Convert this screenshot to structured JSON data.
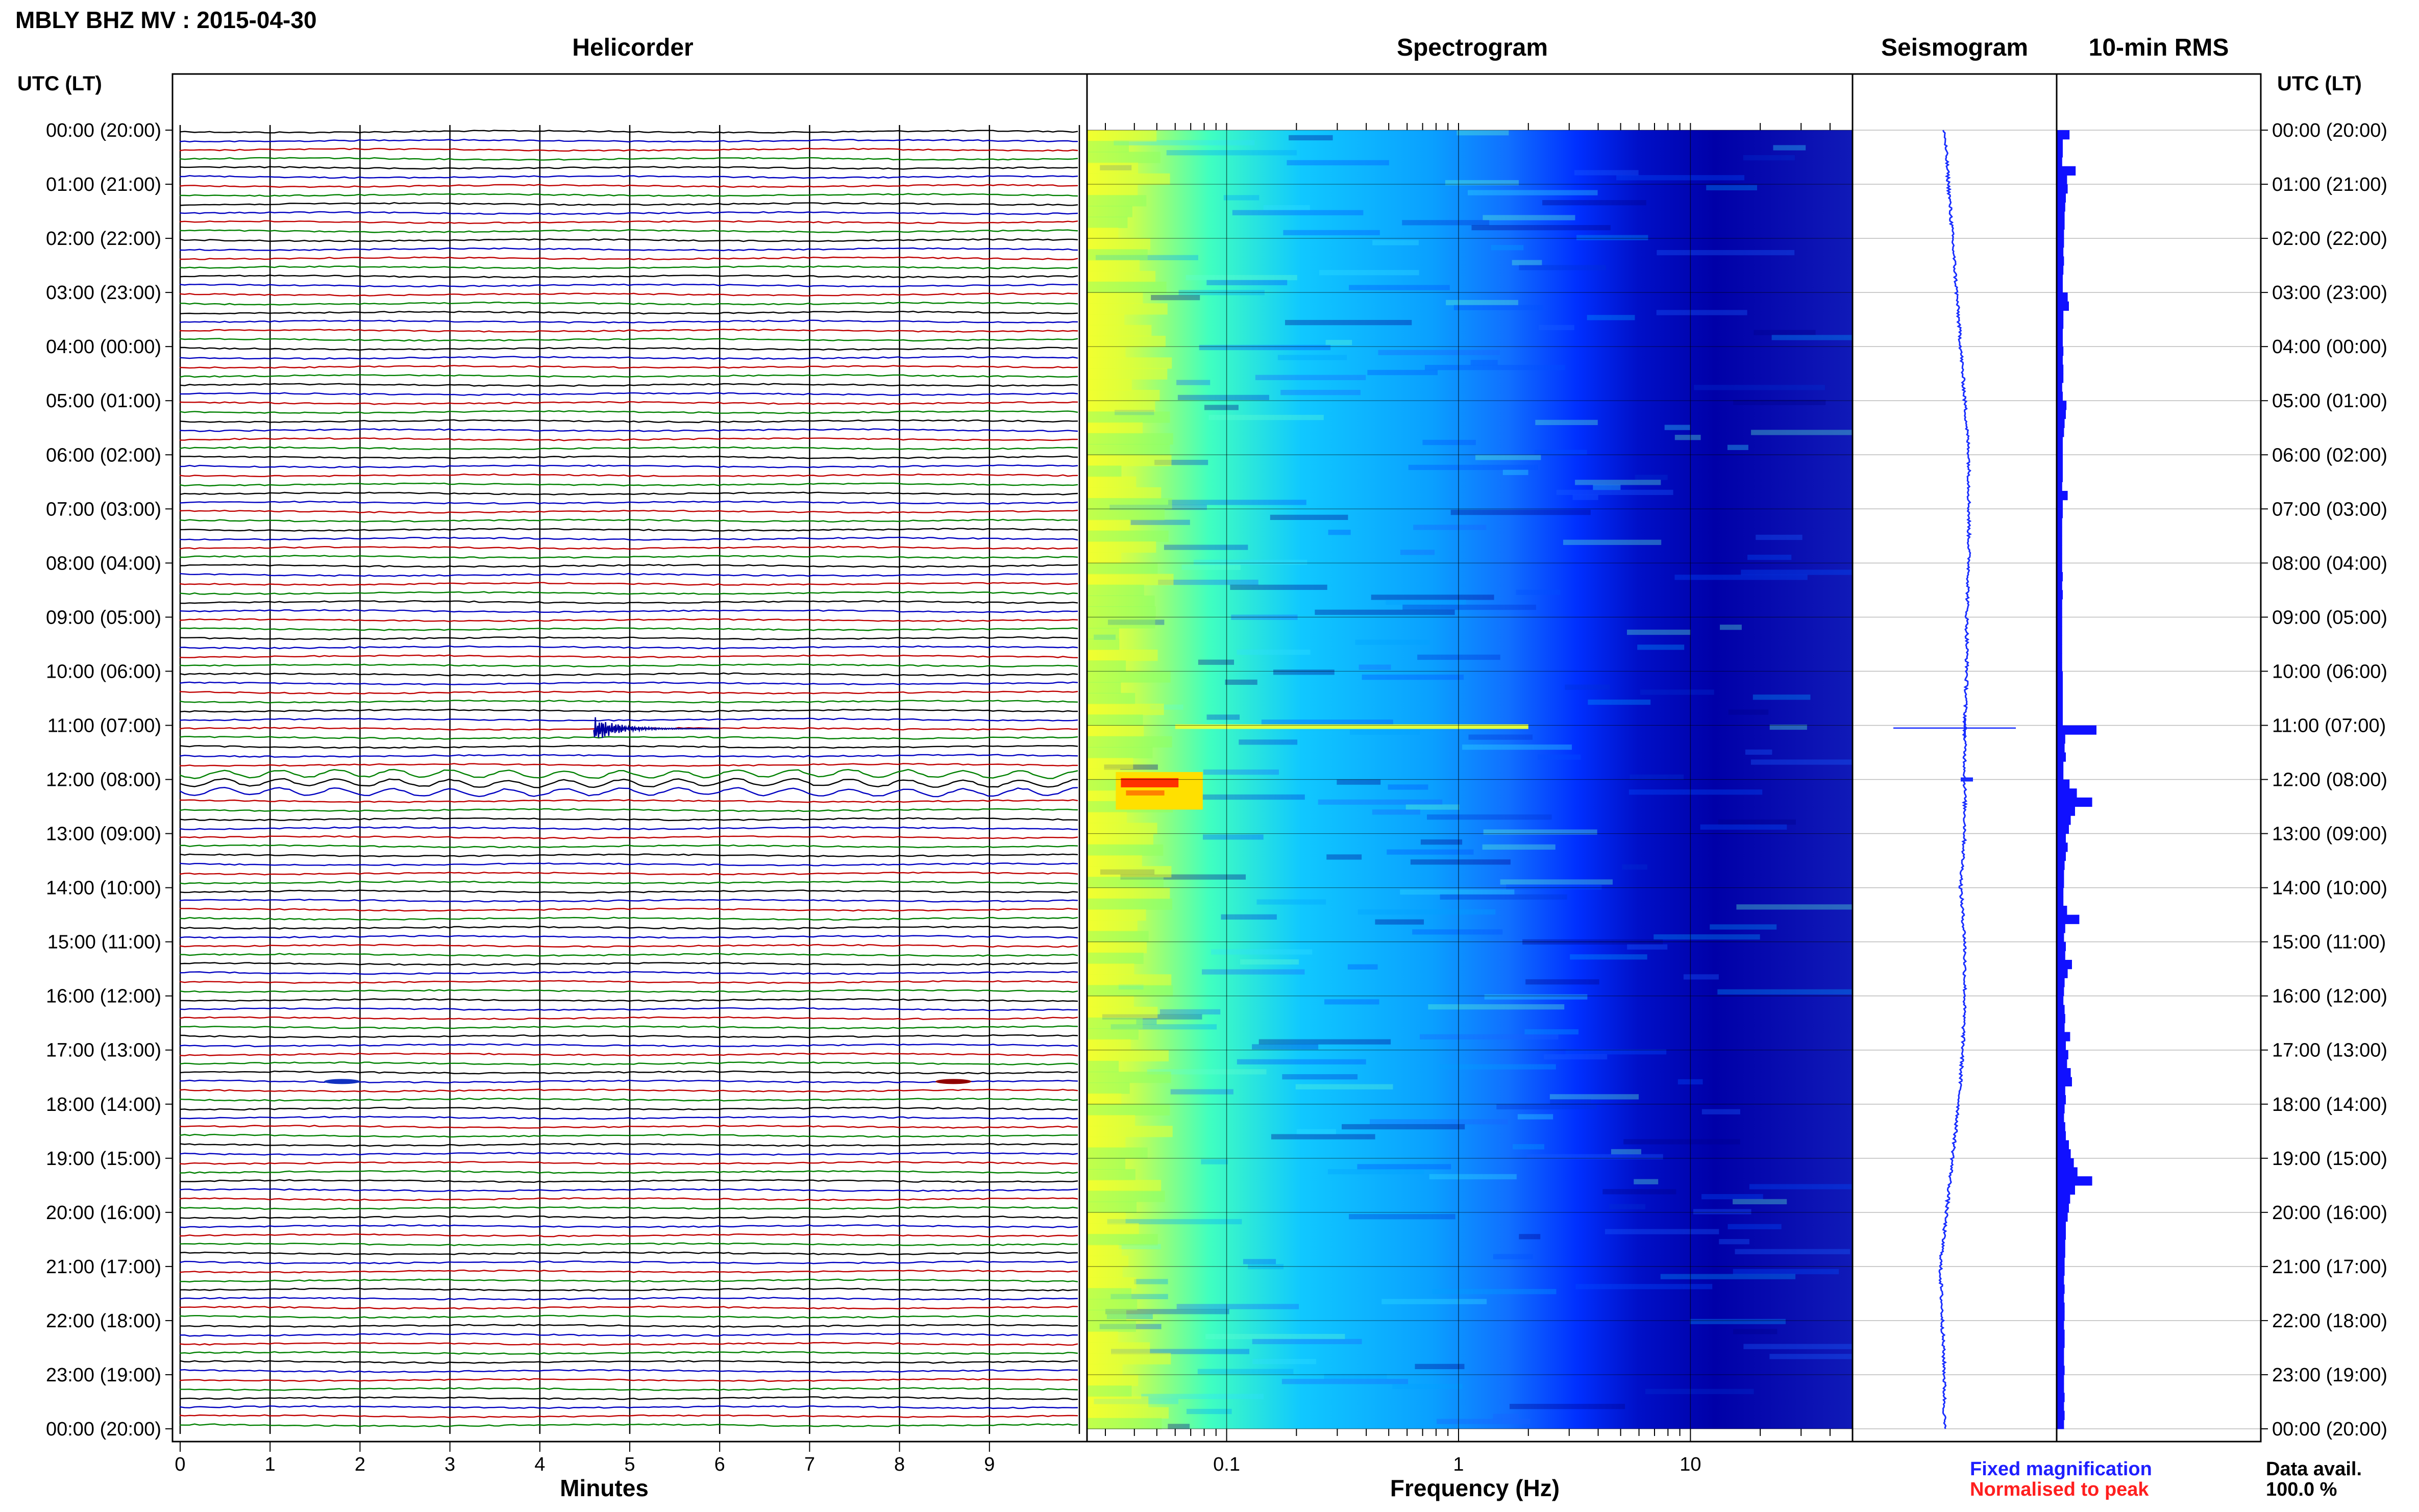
{
  "title": "MBLY BHZ MV : 2015-04-30",
  "panels": {
    "helicorder": "Helicorder",
    "spectrogram": "Spectrogram",
    "seismogram": "Seismogram",
    "rms": "10-min RMS"
  },
  "utc_header_left": "UTC (LT)",
  "utc_header_right": "UTC (LT)",
  "time_labels": [
    "00:00 (20:00)",
    "01:00 (21:00)",
    "02:00 (22:00)",
    "03:00 (23:00)",
    "04:00 (00:00)",
    "05:00 (01:00)",
    "06:00 (02:00)",
    "07:00 (03:00)",
    "08:00 (04:00)",
    "09:00 (05:00)",
    "10:00 (06:00)",
    "11:00 (07:00)",
    "12:00 (08:00)",
    "13:00 (09:00)",
    "14:00 (10:00)",
    "15:00 (11:00)",
    "16:00 (12:00)",
    "17:00 (13:00)",
    "18:00 (14:00)",
    "19:00 (15:00)",
    "20:00 (16:00)",
    "21:00 (17:00)",
    "22:00 (18:00)",
    "23:00 (19:00)",
    "00:00 (20:00)"
  ],
  "legend": {
    "fixed": "Fixed magnification",
    "normalised": "Normalised to peak",
    "fixed_color": "#1f1fff",
    "normalised_color": "#ff1f1f"
  },
  "data_availability": {
    "label": "Data avail.",
    "value": "100.0 %"
  },
  "chart_data": [
    {
      "type": "line",
      "panel": "helicorder",
      "xlabel": "Minutes",
      "x_ticks": [
        "0",
        "1",
        "2",
        "3",
        "4",
        "5",
        "6",
        "7",
        "8",
        "9"
      ],
      "xlim": [
        0,
        10
      ],
      "rows": 144,
      "trace_colors": [
        "#000000",
        "#0000c0",
        "#c00000",
        "#008000"
      ],
      "events": [
        {
          "row": 66,
          "minute_start": 4.6,
          "minute_end": 6.0,
          "label": ""
        },
        {
          "row": 72,
          "minute_start": 0.0,
          "minute_end": 10.0,
          "label": ""
        },
        {
          "row": 105,
          "minute_start": 1.6,
          "minute_end": 2.0,
          "label": ""
        },
        {
          "row": 105,
          "minute_start": 8.4,
          "minute_end": 8.8,
          "label": ""
        }
      ]
    },
    {
      "type": "heatmap",
      "panel": "spectrogram",
      "xlabel": "Frequency (Hz)",
      "x_scale": "log",
      "xlim": [
        0.025,
        50
      ],
      "x_ticks": [
        "0.1",
        "1",
        "10"
      ],
      "x_tick_values": [
        0.1,
        1,
        10
      ],
      "colormap": [
        "#00007f",
        "#0000ff",
        "#007fff",
        "#00ffff",
        "#7fff7f",
        "#ffff00",
        "#ff7f00",
        "#ff0000"
      ],
      "hot_spots": [
        {
          "hour_start": 11.0,
          "hour_end": 11.1,
          "freq_low": 0.06,
          "freq_high": 2.0
        },
        {
          "hour_start": 11.9,
          "hour_end": 12.5,
          "freq_low": 0.035,
          "freq_high": 0.075
        }
      ]
    },
    {
      "type": "line",
      "panel": "seismogram",
      "hours": [
        0,
        1,
        2,
        3,
        4,
        5,
        6,
        7,
        8,
        9,
        10,
        11,
        12,
        13,
        14,
        15,
        16,
        17,
        18,
        19,
        20,
        21,
        22,
        23,
        24
      ],
      "trend": [
        0.45,
        0.47,
        0.49,
        0.51,
        0.53,
        0.55,
        0.57,
        0.57,
        0.57,
        0.56,
        0.56,
        0.55,
        0.55,
        0.55,
        0.53,
        0.55,
        0.55,
        0.54,
        0.52,
        0.49,
        0.46,
        0.43,
        0.44,
        0.45,
        0.45
      ]
    },
    {
      "type": "bar",
      "panel": "rms",
      "orientation": "horizontal",
      "interval_minutes": 10,
      "values": [
        0.42,
        0.2,
        0.2,
        0.18,
        0.62,
        0.34,
        0.36,
        0.3,
        0.28,
        0.26,
        0.26,
        0.24,
        0.24,
        0.22,
        0.24,
        0.22,
        0.2,
        0.2,
        0.36,
        0.4,
        0.22,
        0.22,
        0.2,
        0.2,
        0.22,
        0.2,
        0.22,
        0.22,
        0.18,
        0.2,
        0.32,
        0.3,
        0.26,
        0.24,
        0.2,
        0.2,
        0.2,
        0.2,
        0.2,
        0.18,
        0.36,
        0.2,
        0.2,
        0.18,
        0.18,
        0.18,
        0.18,
        0.18,
        0.18,
        0.2,
        0.18,
        0.2,
        0.18,
        0.18,
        0.18,
        0.18,
        0.18,
        0.18,
        0.18,
        0.18,
        0.2,
        0.2,
        0.2,
        0.2,
        0.2,
        0.2,
        1.3,
        0.28,
        0.26,
        0.3,
        0.22,
        0.22,
        0.42,
        0.66,
        1.16,
        0.6,
        0.46,
        0.4,
        0.3,
        0.36,
        0.3,
        0.26,
        0.24,
        0.24,
        0.22,
        0.22,
        0.34,
        0.74,
        0.28,
        0.24,
        0.3,
        0.28,
        0.5,
        0.36,
        0.26,
        0.24,
        0.22,
        0.26,
        0.28,
        0.26,
        0.44,
        0.3,
        0.38,
        0.34,
        0.46,
        0.5,
        0.28,
        0.3,
        0.26,
        0.24,
        0.28,
        0.3,
        0.4,
        0.46,
        0.56,
        0.68,
        1.16,
        0.6,
        0.44,
        0.4,
        0.36,
        0.3,
        0.3,
        0.28,
        0.28,
        0.26,
        0.26,
        0.24,
        0.26,
        0.24,
        0.26,
        0.26,
        0.24,
        0.26,
        0.26,
        0.24,
        0.24,
        0.26,
        0.24,
        0.24,
        0.26,
        0.24,
        0.26,
        0.24
      ]
    }
  ]
}
